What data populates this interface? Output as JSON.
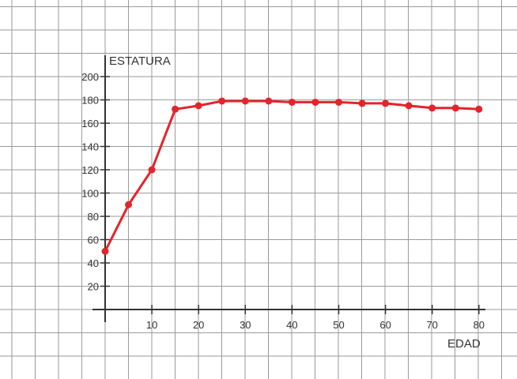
{
  "chart_data": {
    "type": "line",
    "title": "",
    "xlabel": "EDAD",
    "ylabel": "ESTATURA",
    "xlim": [
      0,
      80
    ],
    "ylim": [
      0,
      200
    ],
    "x_ticks": [
      10,
      20,
      30,
      40,
      50,
      60,
      70,
      80
    ],
    "y_ticks": [
      20,
      40,
      60,
      80,
      100,
      120,
      140,
      160,
      180,
      200
    ],
    "grid": true,
    "legend": "none",
    "series": [
      {
        "color": "#e4242b",
        "x": [
          0,
          5,
          10,
          15,
          20,
          25,
          30,
          35,
          40,
          45,
          50,
          55,
          60,
          65,
          70,
          75,
          80
        ],
        "y": [
          50,
          90,
          120,
          172,
          175,
          179,
          179,
          179,
          178,
          178,
          178,
          177,
          177,
          175,
          173,
          173,
          172
        ]
      }
    ]
  },
  "colors": {
    "grid": "#9a9a9a",
    "axis": "#333333",
    "background": "#ffffff"
  }
}
